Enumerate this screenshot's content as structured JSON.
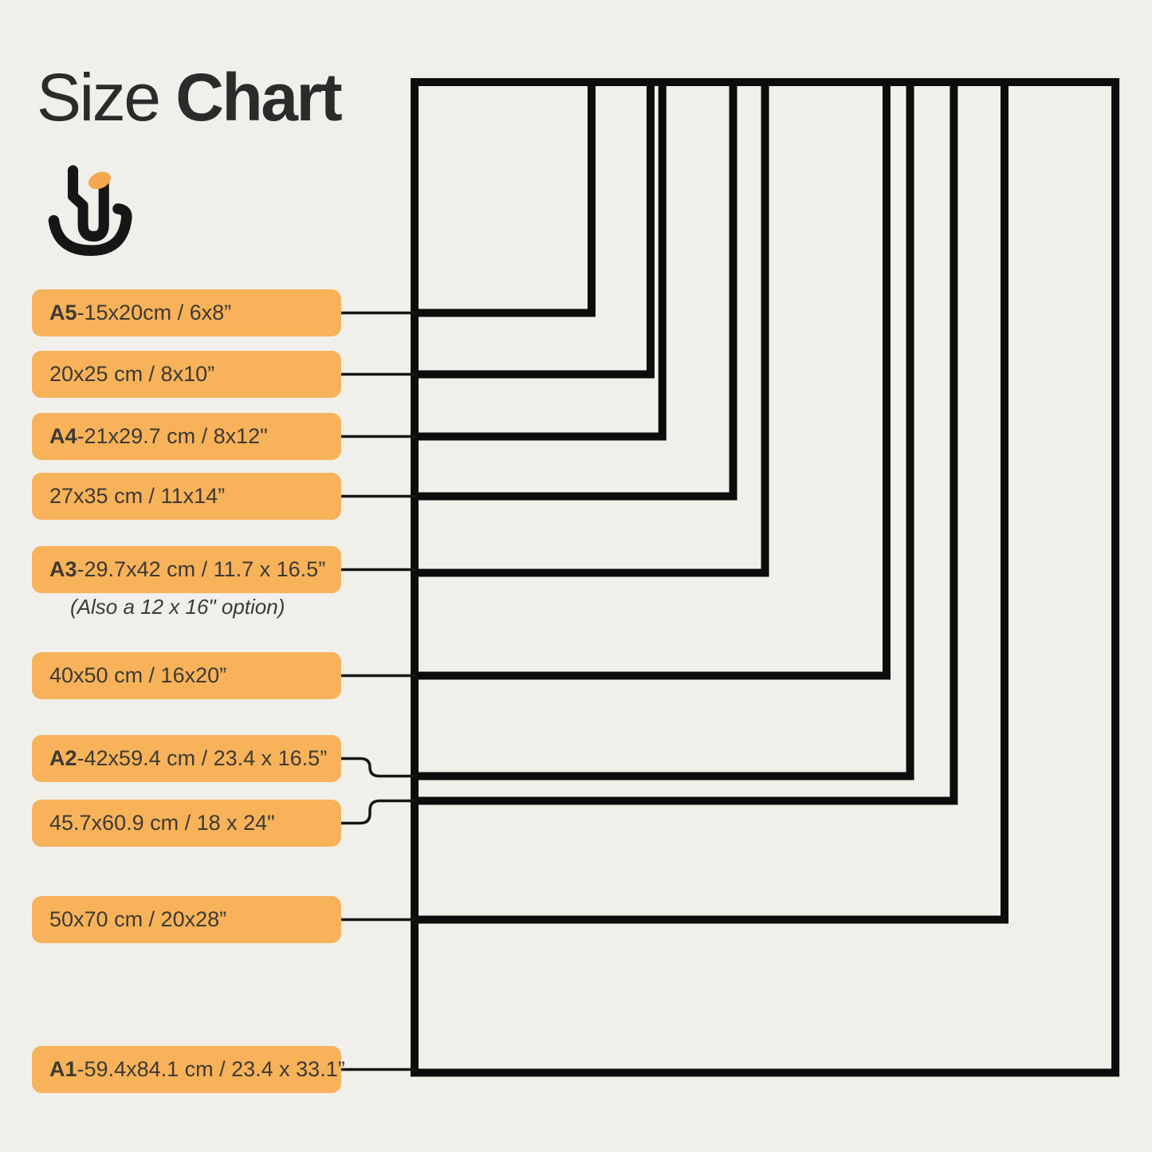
{
  "title": {
    "light": "Size",
    "bold": "Chart"
  },
  "logo": {
    "icon": "hand-smile-logo",
    "dot_color": "#F5A94F",
    "stroke_color": "#161616"
  },
  "colors": {
    "background": "#F1EFE9",
    "label_background": "#F7B25A",
    "label_text": "#3D3A33",
    "title_text": "#2B2B2B",
    "rect_outline": "#0C0C0C"
  },
  "note_after_a3": "(Also a 12 x 16\" option)",
  "diagram": {
    "description": "Nested print-size rectangles sharing one top-left corner; each label connects to the bottom edge of its rectangle",
    "sizes": [
      {
        "id": "a5",
        "label_bold": "A5",
        "label_text": "15x20cm / 6x8”",
        "width_cm": 15,
        "height_cm": 20
      },
      {
        "id": "20x25cm",
        "label_bold": "",
        "label_text": "20x25 cm / 8x10”",
        "width_cm": 20,
        "height_cm": 25
      },
      {
        "id": "a4",
        "label_bold": "A4",
        "label_text": "21x29.7 cm / 8x12\"",
        "width_cm": 21,
        "height_cm": 29.7
      },
      {
        "id": "27x35cm",
        "label_bold": "",
        "label_text": "27x35 cm / 11x14”",
        "width_cm": 27,
        "height_cm": 35
      },
      {
        "id": "a3",
        "label_bold": "A3",
        "label_text": "29.7x42 cm / 11.7 x 16.5”",
        "width_cm": 29.7,
        "height_cm": 42
      },
      {
        "id": "40x50cm",
        "label_bold": "",
        "label_text": "40x50 cm / 16x20”",
        "width_cm": 40,
        "height_cm": 50
      },
      {
        "id": "a2",
        "label_bold": "A2",
        "label_text": "42x59.4 cm / 23.4 x 16.5”",
        "width_cm": 42,
        "height_cm": 59.4
      },
      {
        "id": "18x24in",
        "label_bold": "",
        "label_text": "45.7x60.9 cm / 18 x 24\"",
        "width_cm": 45.7,
        "height_cm": 60.9
      },
      {
        "id": "50x70cm",
        "label_bold": "",
        "label_text": "50x70 cm / 20x28”",
        "width_cm": 50,
        "height_cm": 70
      },
      {
        "id": "a1",
        "label_bold": "A1",
        "label_text": "59.4x84.1 cm / 23.4 x 33.1”",
        "width_cm": 59.4,
        "height_cm": 84.1
      }
    ],
    "separator": " - "
  }
}
